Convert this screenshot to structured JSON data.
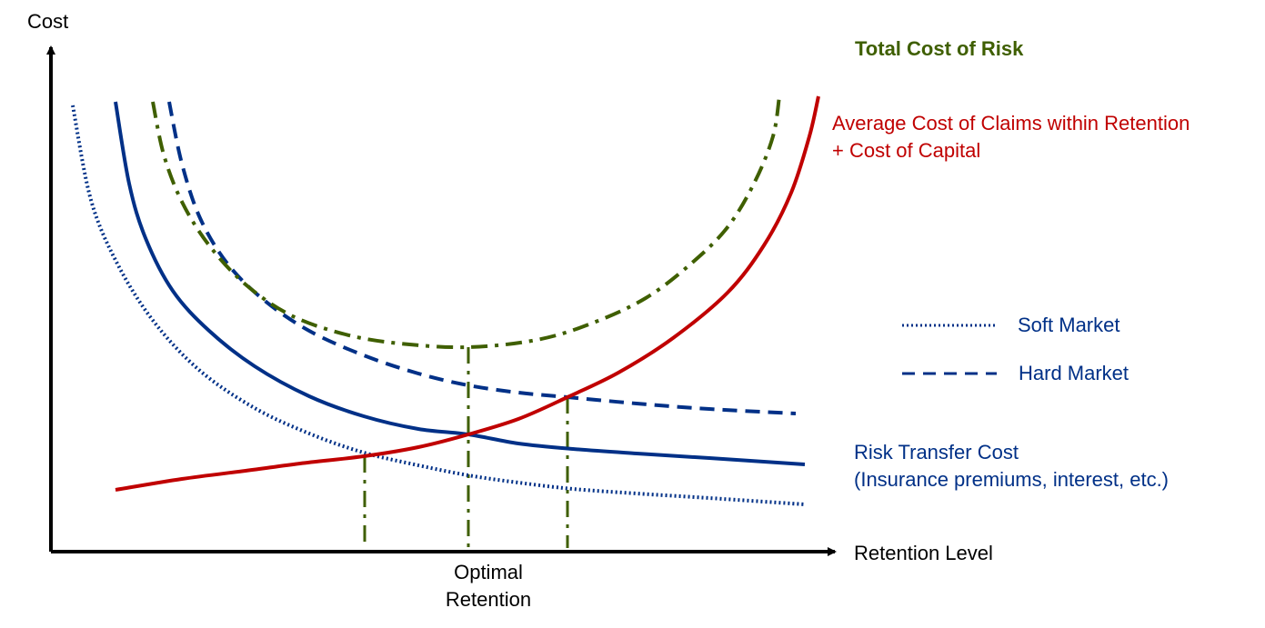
{
  "chart_data": {
    "type": "line",
    "title": "Total Cost of Risk",
    "xlabel": "Retention Level",
    "ylabel": "Cost",
    "grid": false,
    "legend_placement": "right",
    "annotation_optimal": [
      "Optimal",
      "Retention"
    ],
    "label_claims": [
      "Average Cost of Claims within Retention",
      "+  Cost of Capital"
    ],
    "label_transfer": [
      "Risk Transfer Cost",
      "(Insurance premiums, interest, etc.)"
    ],
    "legend": [
      {
        "name": "Soft Market",
        "style": "dotted",
        "color": "#003087"
      },
      {
        "name": "Hard Market",
        "style": "dashed",
        "color": "#003087"
      }
    ],
    "colors": {
      "transfer": "#003087",
      "claims": "#C00000",
      "total": "#3F5F00",
      "axis": "#000000"
    },
    "series": [
      {
        "key": "transfer_soft",
        "style": "dotted",
        "color": "#003087",
        "points": [
          [
            80,
            116
          ],
          [
            100,
            220
          ],
          [
            130,
            292
          ],
          [
            170,
            355
          ],
          [
            220,
            408
          ],
          [
            280,
            449
          ],
          [
            340,
            477
          ],
          [
            400,
            498
          ],
          [
            460,
            512
          ],
          [
            515,
            523
          ],
          [
            570,
            531
          ],
          [
            630,
            538
          ],
          [
            700,
            543
          ],
          [
            780,
            548
          ],
          [
            885,
            555
          ]
        ]
      },
      {
        "key": "transfer_base",
        "style": "solid",
        "color": "#003087",
        "points": [
          [
            127,
            112
          ],
          [
            142,
            202
          ],
          [
            160,
            262
          ],
          [
            190,
            320
          ],
          [
            230,
            364
          ],
          [
            280,
            403
          ],
          [
            340,
            436
          ],
          [
            400,
            458
          ],
          [
            460,
            472
          ],
          [
            515,
            478
          ],
          [
            570,
            488
          ],
          [
            630,
            494
          ],
          [
            700,
            499
          ],
          [
            780,
            504
          ],
          [
            885,
            511
          ]
        ]
      },
      {
        "key": "transfer_hard",
        "style": "dashed",
        "color": "#003087",
        "points": [
          [
            186,
            112
          ],
          [
            200,
            180
          ],
          [
            220,
            240
          ],
          [
            250,
            290
          ],
          [
            290,
            330
          ],
          [
            340,
            364
          ],
          [
            400,
            391
          ],
          [
            460,
            411
          ],
          [
            515,
            424
          ],
          [
            570,
            432
          ],
          [
            624,
            437
          ],
          [
            700,
            444
          ],
          [
            780,
            450
          ],
          [
            875,
            455
          ]
        ]
      },
      {
        "key": "claims_capital",
        "style": "solid",
        "color": "#C00000",
        "points": [
          [
            127,
            539
          ],
          [
            200,
            527
          ],
          [
            270,
            518
          ],
          [
            330,
            510
          ],
          [
            400,
            502
          ],
          [
            460,
            492
          ],
          [
            515,
            478
          ],
          [
            570,
            461
          ],
          [
            624,
            437
          ],
          [
            680,
            410
          ],
          [
            740,
            372
          ],
          [
            800,
            322
          ],
          [
            840,
            270
          ],
          [
            870,
            212
          ],
          [
            890,
            150
          ],
          [
            900,
            106
          ]
        ]
      },
      {
        "key": "total_cost",
        "style": "dashdot",
        "color": "#3F5F00",
        "points": [
          [
            168,
            112
          ],
          [
            180,
            170
          ],
          [
            200,
            222
          ],
          [
            230,
            270
          ],
          [
            270,
            313
          ],
          [
            320,
            347
          ],
          [
            380,
            368
          ],
          [
            440,
            378
          ],
          [
            515,
            382
          ],
          [
            590,
            374
          ],
          [
            650,
            356
          ],
          [
            710,
            328
          ],
          [
            760,
            290
          ],
          [
            800,
            250
          ],
          [
            830,
            200
          ],
          [
            850,
            150
          ],
          [
            857,
            106
          ]
        ]
      }
    ],
    "drop_lines": [
      {
        "x": 401,
        "y_top": 502,
        "style": "dashdot"
      },
      {
        "x": 515,
        "y_top": 382,
        "style": "dashdot"
      },
      {
        "x": 624,
        "y_top": 437,
        "style": "dashdot"
      }
    ]
  }
}
